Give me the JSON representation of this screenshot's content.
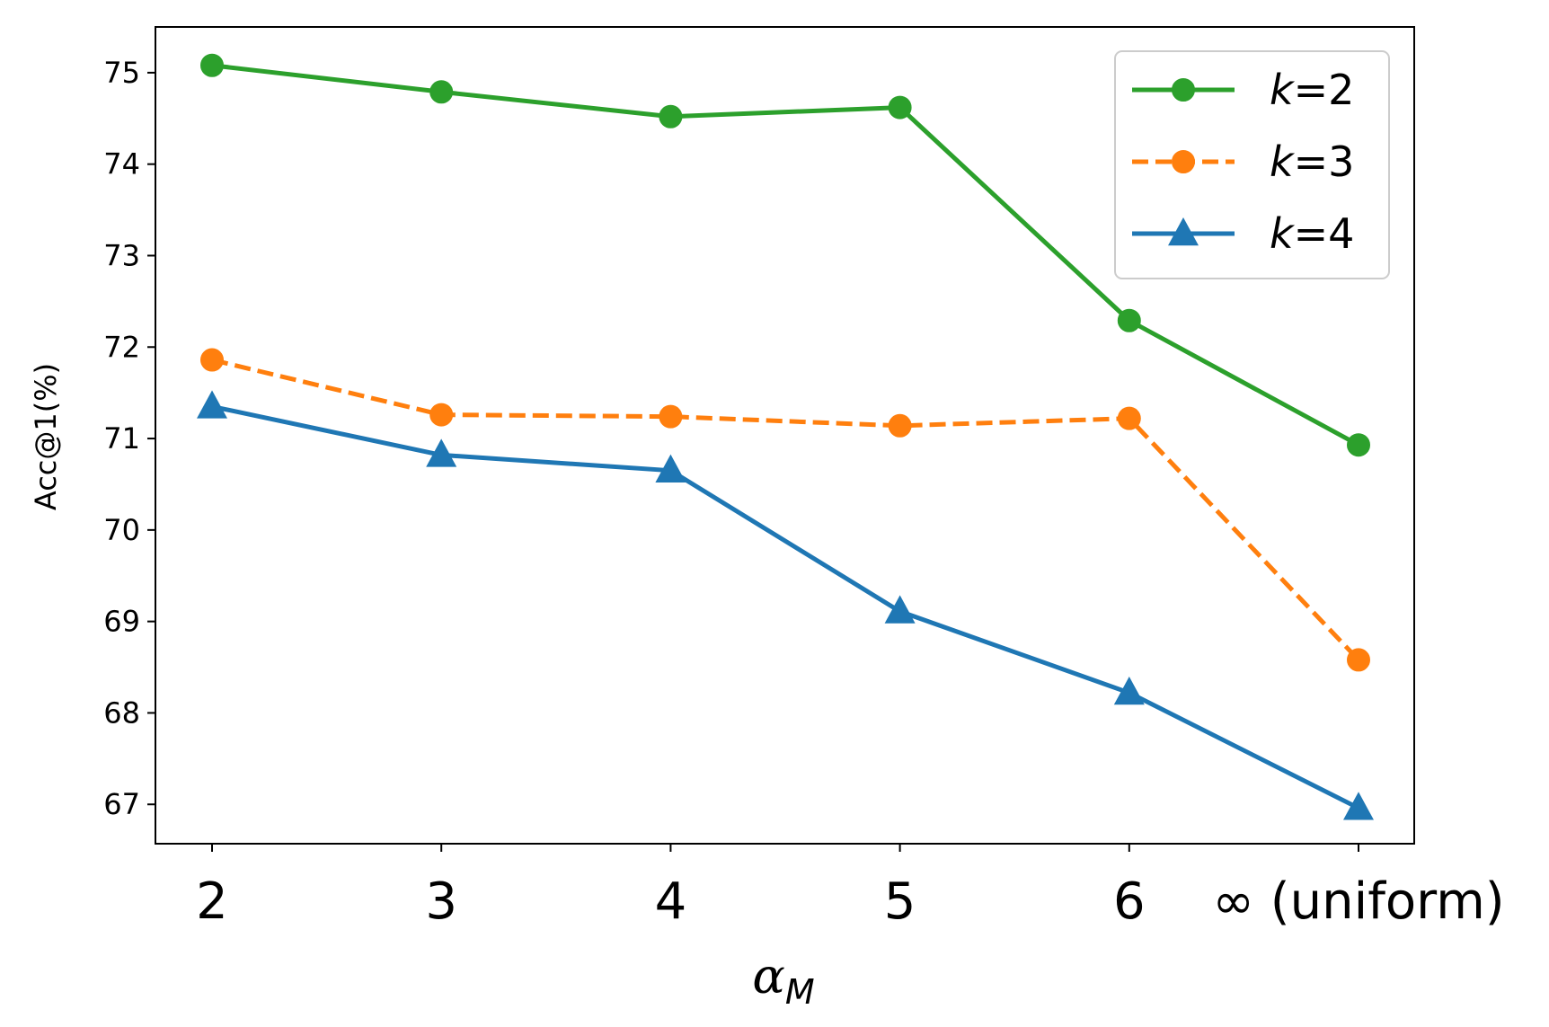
{
  "chart_data": {
    "type": "line",
    "title": "",
    "xlabel": "α",
    "xlabel_sub": "M",
    "ylabel": "Acc@1(%)",
    "categories": [
      "2",
      "3",
      "4",
      "5",
      "6",
      "∞ (uniform)"
    ],
    "ylim": [
      66.57,
      75.5
    ],
    "yticks": [
      "67",
      "68",
      "69",
      "70",
      "71",
      "72",
      "73",
      "74",
      "75"
    ],
    "grid": false,
    "legend_position": "top-right",
    "series": [
      {
        "name": "k=2",
        "name_var": "k",
        "name_rest": "=2",
        "color": "#2ca02c",
        "style": "solid",
        "marker": "circle",
        "values": [
          75.08,
          74.79,
          74.52,
          74.62,
          72.29,
          70.93
        ]
      },
      {
        "name": "k=3",
        "name_var": "k",
        "name_rest": "=3",
        "color": "#ff7f0e",
        "style": "dashed",
        "marker": "circle",
        "values": [
          71.86,
          71.26,
          71.24,
          71.14,
          71.22,
          68.58
        ]
      },
      {
        "name": "k=4",
        "name_var": "k",
        "name_rest": "=4",
        "color": "#1f77b4",
        "style": "solid",
        "marker": "triangle",
        "values": [
          71.35,
          70.82,
          70.65,
          69.11,
          68.22,
          66.96
        ]
      }
    ]
  }
}
